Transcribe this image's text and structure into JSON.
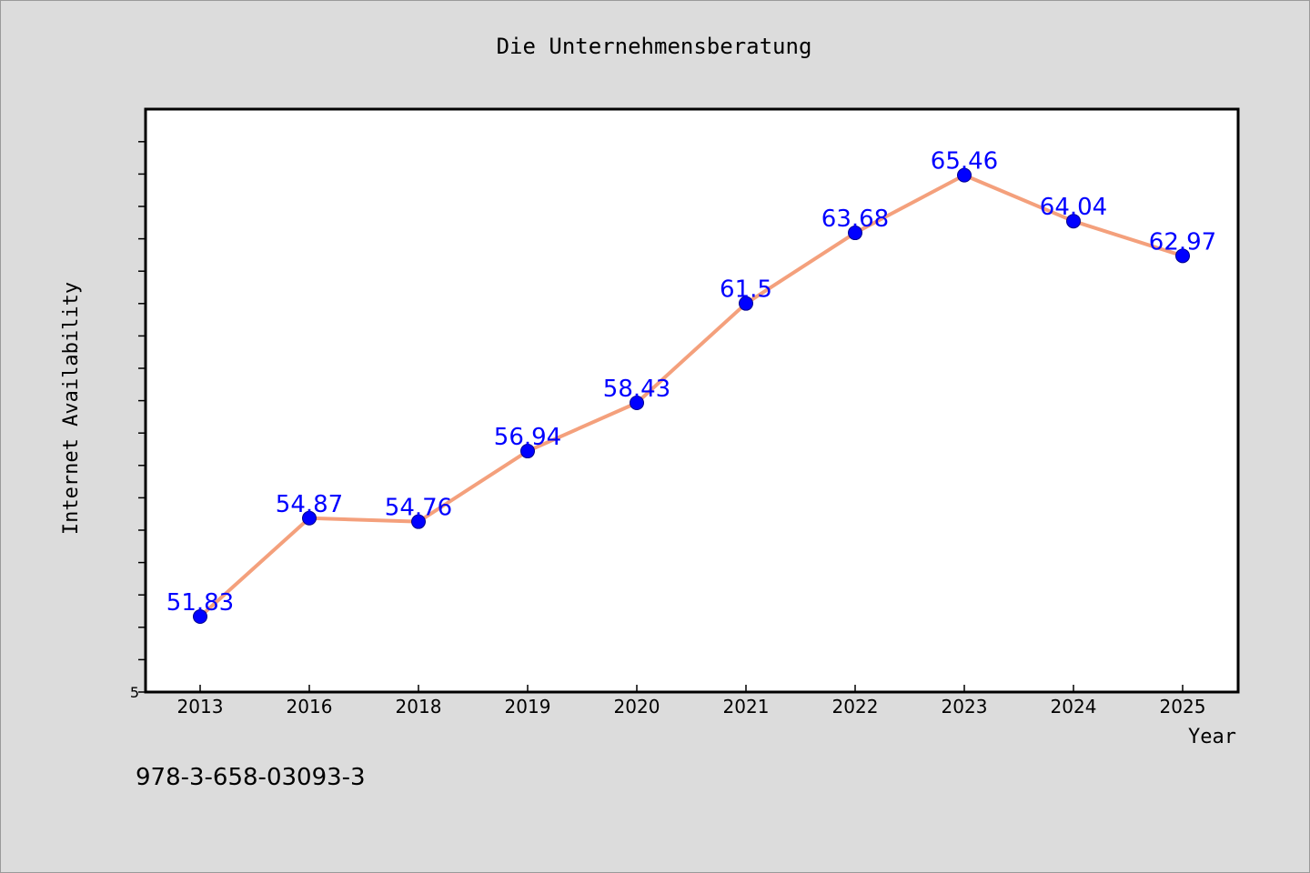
{
  "chart_data": {
    "type": "line",
    "title": "Die Unternehmensberatung",
    "xlabel": "Year",
    "ylabel": "Internet Availability",
    "categories": [
      "2013",
      "2016",
      "2018",
      "2019",
      "2020",
      "2021",
      "2022",
      "2023",
      "2024",
      "2025"
    ],
    "series": [
      {
        "values": [
          51.83,
          54.87,
          54.76,
          56.94,
          58.43,
          61.5,
          63.68,
          65.46,
          64.04,
          62.97
        ],
        "value_labels": [
          "51.83",
          "54.87",
          "54.76",
          "56.94",
          "58.43",
          "61.5",
          "63.68",
          "65.46",
          "64.04",
          "62.97"
        ]
      }
    ],
    "y_tick_labels": [
      "5"
    ],
    "ylim": [
      49.5,
      67.5
    ],
    "grid": false,
    "legend": "none",
    "annotation": "978-3-658-03093-3",
    "colors": {
      "background": "#dcdcdc",
      "plot_background": "#ffffff",
      "line": "#f4a07c",
      "marker": "#0000ff",
      "value_label": "#0000ff",
      "text": "#000000"
    }
  }
}
